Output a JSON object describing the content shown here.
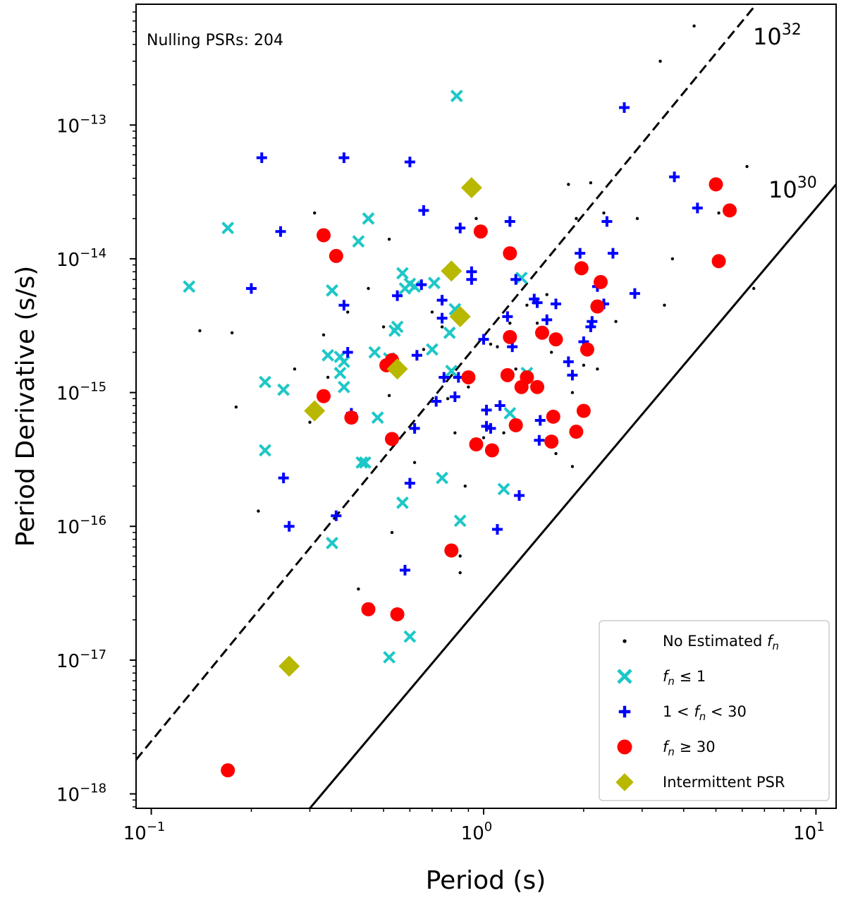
{
  "chart_data": {
    "type": "scatter",
    "annotation": "Nulling PSRs: 204",
    "xlabel": "Period (s)",
    "ylabel": "Period Derivative (s/s)",
    "xscale": "log",
    "yscale": "log",
    "xlim": [
      0.09,
      11.5
    ],
    "ylim": [
      7.8e-19,
      8e-13
    ],
    "xticks": [
      {
        "value": 0.1,
        "base": "10",
        "exp": "−1"
      },
      {
        "value": 1,
        "base": "10",
        "exp": "0"
      },
      {
        "value": 10,
        "base": "10",
        "exp": "1"
      }
    ],
    "yticks": [
      {
        "value": 1e-18,
        "base": "10",
        "exp": "−18"
      },
      {
        "value": 1e-17,
        "base": "10",
        "exp": "−17"
      },
      {
        "value": 1e-16,
        "base": "10",
        "exp": "−16"
      },
      {
        "value": 1e-15,
        "base": "10",
        "exp": "−15"
      },
      {
        "value": 1e-14,
        "base": "10",
        "exp": "−14"
      },
      {
        "value": 1e-13,
        "base": "10",
        "exp": "−13"
      }
    ],
    "lines": [
      {
        "name": "edot-1e32",
        "label_base": "10",
        "label_exp": "32",
        "style": "dashed",
        "x": [
          0.09,
          6.5
        ],
        "y": [
          1.8e-18,
          7.6e-13
        ]
      },
      {
        "name": "edot-1e30",
        "label_base": "10",
        "label_exp": "30",
        "style": "solid",
        "x": [
          0.3,
          11.5
        ],
        "y": [
          7.8e-19,
          3.6e-14
        ]
      }
    ],
    "legend": {
      "position": "lower right",
      "entries": [
        {
          "key": "none",
          "label_pre": "No Estimated ",
          "label_f": "f",
          "label_sub": "n",
          "label_post": ""
        },
        {
          "key": "low",
          "label_pre": "",
          "label_f": "f",
          "label_sub": "n",
          "label_post": " ≤ 1"
        },
        {
          "key": "mid",
          "label_pre": "1 < ",
          "label_f": "f",
          "label_sub": "n",
          "label_post": " < 30"
        },
        {
          "key": "high",
          "label_pre": "",
          "label_f": "f",
          "label_sub": "n",
          "label_post": " ≥ 30"
        },
        {
          "key": "inter",
          "label_pre": "Intermittent PSR",
          "label_f": "",
          "label_sub": "",
          "label_post": ""
        }
      ]
    },
    "series": [
      {
        "name": "No Estimated fn",
        "key": "none",
        "marker": "dot",
        "color": "#000000",
        "points": [
          [
            0.14,
            2.9e-15
          ],
          [
            0.175,
            2.8e-15
          ],
          [
            0.18,
            7.8e-16
          ],
          [
            0.21,
            1.3e-16
          ],
          [
            0.27,
            1.5e-15
          ],
          [
            0.3,
            6e-16
          ],
          [
            0.31,
            2.2e-14
          ],
          [
            0.33,
            2.7e-15
          ],
          [
            0.34,
            1.3e-15
          ],
          [
            0.36,
            1.5e-15
          ],
          [
            0.39,
            4e-15
          ],
          [
            0.42,
            3.4e-17
          ],
          [
            0.45,
            6e-15
          ],
          [
            0.5,
            3.1e-15
          ],
          [
            0.52,
            1.4e-14
          ],
          [
            0.52,
            9.5e-16
          ],
          [
            0.53,
            9e-17
          ],
          [
            0.55,
            1.6e-15
          ],
          [
            0.62,
            3e-16
          ],
          [
            0.66,
            2.1e-15
          ],
          [
            0.7,
            4e-15
          ],
          [
            0.75,
            3.1e-15
          ],
          [
            0.78,
            9e-16
          ],
          [
            0.82,
            5e-16
          ],
          [
            0.82,
            3.8e-15
          ],
          [
            0.85,
            6e-17
          ],
          [
            0.85,
            4.5e-17
          ],
          [
            0.88,
            2e-16
          ],
          [
            0.9,
            1.1e-15
          ],
          [
            0.95,
            2e-14
          ],
          [
            1.0,
            4.6e-16
          ],
          [
            1.05,
            2.3e-15
          ],
          [
            1.1,
            2.2e-15
          ],
          [
            1.15,
            5e-16
          ],
          [
            1.2,
            3.3e-15
          ],
          [
            1.25,
            1.5e-15
          ],
          [
            1.35,
            4.5e-15
          ],
          [
            1.45,
            3.3e-15
          ],
          [
            1.55,
            5.4e-15
          ],
          [
            1.6,
            2e-15
          ],
          [
            1.65,
            3.5e-16
          ],
          [
            1.8,
            3.6e-14
          ],
          [
            1.85,
            2.8e-16
          ],
          [
            1.85,
            1e-15
          ],
          [
            1.9,
            2e-14
          ],
          [
            2.0,
            1.6e-15
          ],
          [
            2.1,
            3.7e-14
          ],
          [
            2.2,
            1.5e-15
          ],
          [
            2.3,
            2.2e-14
          ],
          [
            2.5,
            3.4e-15
          ],
          [
            2.9,
            2e-14
          ],
          [
            3.4,
            3e-13
          ],
          [
            3.5,
            4.5e-15
          ],
          [
            3.7,
            1e-14
          ],
          [
            4.3,
            5.5e-13
          ],
          [
            5.1,
            2.2e-14
          ],
          [
            6.2,
            4.9e-14
          ],
          [
            6.5,
            6e-15
          ]
        ]
      },
      {
        "name": "fn <= 1",
        "key": "low",
        "marker": "x",
        "color": "#1ec7c7",
        "points": [
          [
            0.13,
            6.2e-15
          ],
          [
            0.17,
            1.7e-14
          ],
          [
            0.22,
            1.2e-15
          ],
          [
            0.22,
            3.7e-16
          ],
          [
            0.25,
            1.05e-15
          ],
          [
            0.34,
            1.9e-15
          ],
          [
            0.35,
            5.8e-15
          ],
          [
            0.35,
            7.5e-17
          ],
          [
            0.37,
            1.85e-15
          ],
          [
            0.37,
            1.4e-15
          ],
          [
            0.38,
            1.1e-15
          ],
          [
            0.38,
            1.7e-15
          ],
          [
            0.42,
            1.35e-14
          ],
          [
            0.43,
            3e-16
          ],
          [
            0.44,
            3e-16
          ],
          [
            0.45,
            2e-14
          ],
          [
            0.47,
            2e-15
          ],
          [
            0.48,
            6.5e-16
          ],
          [
            0.52,
            1.05e-17
          ],
          [
            0.54,
            2.9e-15
          ],
          [
            0.55,
            3.1e-15
          ],
          [
            0.57,
            1.5e-16
          ],
          [
            0.57,
            7.8e-15
          ],
          [
            0.6,
            1.5e-17
          ],
          [
            0.6,
            6.5e-15
          ],
          [
            0.58,
            6e-15
          ],
          [
            0.7,
            2.1e-15
          ],
          [
            0.71,
            6.6e-15
          ],
          [
            0.75,
            2.3e-16
          ],
          [
            0.8,
            1.45e-15
          ],
          [
            0.83,
            1.65e-13
          ],
          [
            0.85,
            1.1e-16
          ],
          [
            0.79,
            2.8e-15
          ],
          [
            1.15,
            1.9e-16
          ],
          [
            1.2,
            7e-16
          ],
          [
            1.3,
            7.2e-15
          ],
          [
            1.35,
            1.4e-15
          ],
          [
            0.82,
            4.2e-15
          ],
          [
            0.52,
            1.8e-15
          ],
          [
            0.62,
            6.2e-15
          ]
        ]
      },
      {
        "name": "1 < fn < 30",
        "key": "mid",
        "marker": "plus",
        "color": "#0000ff",
        "points": [
          [
            0.2,
            6e-15
          ],
          [
            0.215,
            5.7e-14
          ],
          [
            0.245,
            1.6e-14
          ],
          [
            0.25,
            2.3e-16
          ],
          [
            0.26,
            1e-16
          ],
          [
            0.36,
            1.2e-16
          ],
          [
            0.38,
            5.7e-14
          ],
          [
            0.38,
            4.5e-15
          ],
          [
            0.39,
            2e-15
          ],
          [
            0.4,
            7e-16
          ],
          [
            0.55,
            5.3e-15
          ],
          [
            0.58,
            4.7e-17
          ],
          [
            0.6,
            5.3e-14
          ],
          [
            0.6,
            2.1e-16
          ],
          [
            0.62,
            5.4e-16
          ],
          [
            0.63,
            1.9e-15
          ],
          [
            0.65,
            6.4e-15
          ],
          [
            0.66,
            2.3e-14
          ],
          [
            0.72,
            8.6e-16
          ],
          [
            0.75,
            4.9e-15
          ],
          [
            0.75,
            3.6e-15
          ],
          [
            0.76,
            1.3e-15
          ],
          [
            0.82,
            9.3e-16
          ],
          [
            0.84,
            1.3e-15
          ],
          [
            0.85,
            1.7e-14
          ],
          [
            0.92,
            8e-15
          ],
          [
            0.92,
            7e-15
          ],
          [
            1.0,
            2.5e-15
          ],
          [
            1.02,
            7.4e-16
          ],
          [
            1.02,
            5.6e-16
          ],
          [
            1.05,
            5.4e-16
          ],
          [
            1.1,
            9.5e-17
          ],
          [
            1.12,
            8e-16
          ],
          [
            1.18,
            3.7e-15
          ],
          [
            1.2,
            1.9e-14
          ],
          [
            1.22,
            2.2e-15
          ],
          [
            1.25,
            7e-15
          ],
          [
            1.28,
            1.7e-16
          ],
          [
            1.42,
            5e-15
          ],
          [
            1.45,
            4.7e-15
          ],
          [
            1.47,
            4.4e-16
          ],
          [
            1.48,
            6.2e-16
          ],
          [
            1.55,
            3.5e-15
          ],
          [
            1.65,
            4.6e-15
          ],
          [
            1.8,
            1.7e-15
          ],
          [
            1.85,
            1.35e-15
          ],
          [
            1.95,
            1.1e-14
          ],
          [
            2.0,
            2.4e-15
          ],
          [
            2.1,
            3.1e-15
          ],
          [
            2.12,
            3.4e-15
          ],
          [
            2.2,
            6.2e-15
          ],
          [
            2.3,
            4.6e-15
          ],
          [
            2.35,
            1.9e-14
          ],
          [
            2.45,
            1.1e-14
          ],
          [
            2.65,
            1.35e-13
          ],
          [
            2.85,
            5.5e-15
          ],
          [
            3.75,
            4.1e-14
          ],
          [
            4.4,
            2.4e-14
          ]
        ]
      },
      {
        "name": "fn >= 30",
        "key": "high",
        "marker": "circle",
        "color": "#ff0000",
        "points": [
          [
            0.17,
            1.5e-18
          ],
          [
            0.33,
            1.5e-14
          ],
          [
            0.33,
            9.4e-16
          ],
          [
            0.36,
            1.05e-14
          ],
          [
            0.4,
            6.5e-16
          ],
          [
            0.45,
            2.4e-17
          ],
          [
            0.51,
            1.6e-15
          ],
          [
            0.53,
            1.75e-15
          ],
          [
            0.53,
            4.5e-16
          ],
          [
            0.55,
            2.2e-17
          ],
          [
            0.8,
            6.6e-17
          ],
          [
            0.9,
            1.3e-15
          ],
          [
            0.95,
            4.1e-16
          ],
          [
            0.98,
            1.6e-14
          ],
          [
            1.06,
            3.7e-16
          ],
          [
            1.18,
            1.35e-15
          ],
          [
            1.2,
            1.1e-14
          ],
          [
            1.2,
            2.6e-15
          ],
          [
            1.25,
            5.7e-16
          ],
          [
            1.3,
            1.1e-15
          ],
          [
            1.35,
            1.3e-15
          ],
          [
            1.45,
            1.1e-15
          ],
          [
            1.5,
            2.8e-15
          ],
          [
            1.6,
            4.3e-16
          ],
          [
            1.62,
            6.6e-16
          ],
          [
            1.65,
            2.5e-15
          ],
          [
            1.9,
            5.1e-16
          ],
          [
            1.97,
            8.5e-15
          ],
          [
            2.0,
            7.3e-16
          ],
          [
            2.05,
            2.1e-15
          ],
          [
            2.2,
            4.4e-15
          ],
          [
            2.25,
            6.7e-15
          ],
          [
            5.0,
            3.6e-14
          ],
          [
            5.1,
            9.6e-15
          ],
          [
            5.5,
            2.3e-14
          ]
        ]
      },
      {
        "name": "Intermittent PSR",
        "key": "inter",
        "marker": "diamond",
        "color": "#b8b800",
        "points": [
          [
            0.26,
            9e-18
          ],
          [
            0.31,
            7.3e-16
          ],
          [
            0.55,
            1.5e-15
          ],
          [
            0.8,
            8.1e-15
          ],
          [
            0.85,
            3.7e-15
          ],
          [
            0.92,
            3.4e-14
          ]
        ]
      }
    ]
  }
}
